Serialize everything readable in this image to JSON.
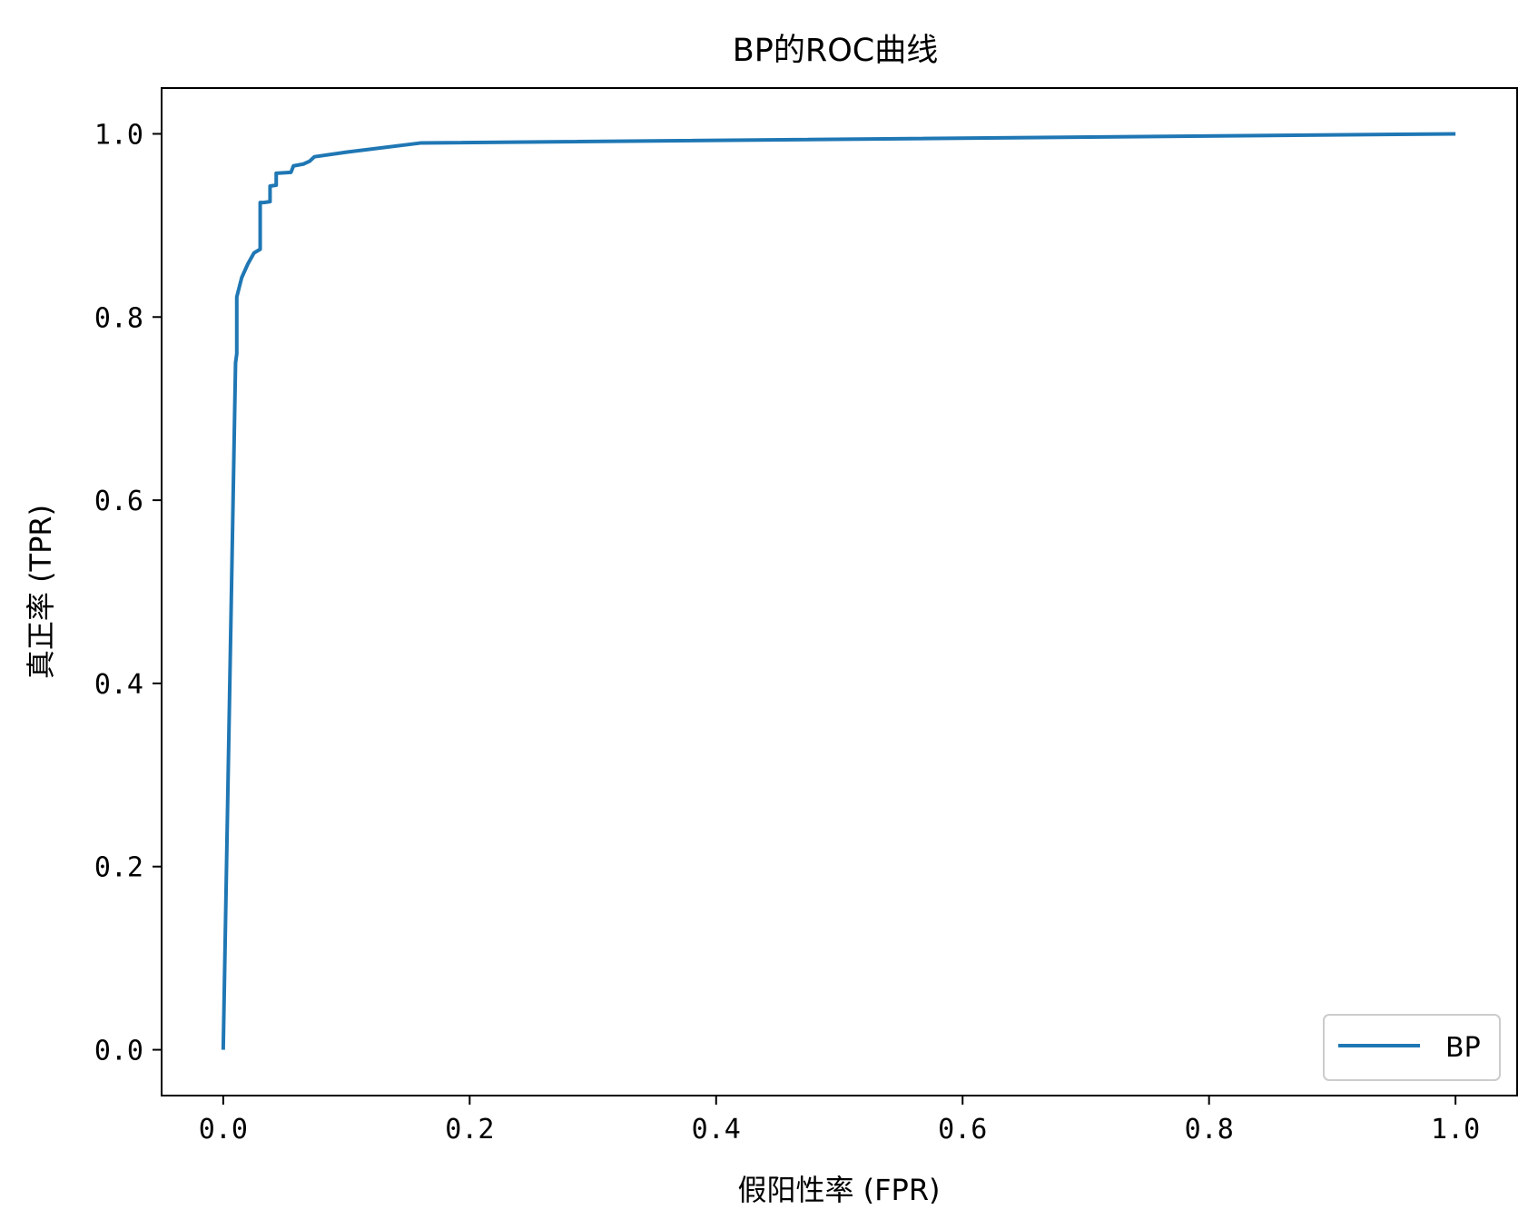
{
  "chart_data": {
    "type": "line",
    "title": "BP的ROC曲线",
    "xlabel": "假阳性率 (FPR)",
    "ylabel": "真正率 (TPR)",
    "xlim": [
      -0.05,
      1.05
    ],
    "ylim": [
      -0.05,
      1.05
    ],
    "xticks": [
      0.0,
      0.2,
      0.4,
      0.6,
      0.8,
      1.0
    ],
    "xtick_labels": [
      "0.0",
      "0.2",
      "0.4",
      "0.6",
      "0.8",
      "1.0"
    ],
    "yticks": [
      0.0,
      0.2,
      0.4,
      0.6,
      0.8,
      1.0
    ],
    "ytick_labels": [
      "0.0",
      "0.2",
      "0.4",
      "0.6",
      "0.8",
      "1.0"
    ],
    "grid": false,
    "legend_position": "lower-right",
    "series": [
      {
        "name": "BP",
        "color": "#1f77b4",
        "x": [
          0.0,
          0.01,
          0.011,
          0.011,
          0.015,
          0.02,
          0.025,
          0.03,
          0.03,
          0.033,
          0.038,
          0.038,
          0.043,
          0.043,
          0.055,
          0.057,
          0.065,
          0.07,
          0.074,
          0.1,
          0.16,
          1.0
        ],
        "y": [
          0.0,
          0.75,
          0.76,
          0.822,
          0.843,
          0.858,
          0.87,
          0.874,
          0.925,
          0.925,
          0.926,
          0.943,
          0.944,
          0.957,
          0.958,
          0.965,
          0.967,
          0.97,
          0.975,
          0.98,
          0.99,
          1.0
        ]
      }
    ]
  }
}
